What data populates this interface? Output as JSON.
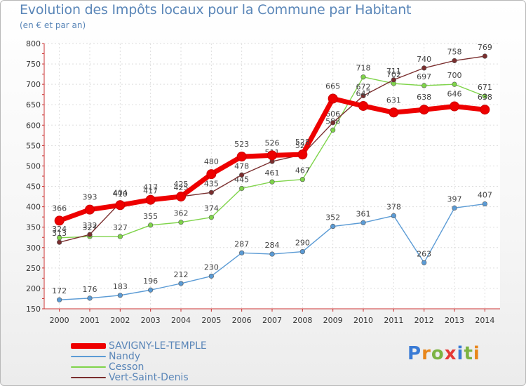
{
  "header": {
    "title": "Evolution des Impôts locaux pour la Commune par Habitant",
    "subtitle": "(en € et par an)"
  },
  "logo": {
    "text": "Proxiti",
    "letter_colors": [
      "#3a7bd5",
      "#e8861a",
      "#7cb342",
      "#e53935",
      "#3a7bd5",
      "#7cb342",
      "#e8861a"
    ]
  },
  "chart_data": {
    "type": "line",
    "x": [
      "2000",
      "2001",
      "2002",
      "2003",
      "2004",
      "2005",
      "2006",
      "2007",
      "2008",
      "2009",
      "2010",
      "2011",
      "2012",
      "2013",
      "2014"
    ],
    "ylim": [
      150,
      800
    ],
    "yticks": [
      150,
      200,
      250,
      300,
      350,
      400,
      450,
      500,
      550,
      600,
      650,
      700,
      750,
      800
    ],
    "grid": true,
    "legend_position": "bottom-left",
    "series": [
      {
        "name": "SAVIGNY-LE-TEMPLE",
        "color": "#ee0000",
        "style": "thick",
        "values": [
          366,
          393,
          404,
          417,
          425,
          480,
          523,
          526,
          528,
          665,
          647,
          631,
          638,
          646,
          638
        ]
      },
      {
        "name": "Nandy",
        "color": "#5b9bd5",
        "style": "thin",
        "values": [
          172,
          176,
          183,
          196,
          212,
          230,
          287,
          284,
          290,
          352,
          361,
          378,
          263,
          397,
          407
        ]
      },
      {
        "name": "Cesson",
        "color": "#7fd44a",
        "style": "thin",
        "values": [
          324,
          327,
          327,
          355,
          362,
          374,
          445,
          461,
          467,
          588,
          718,
          702,
          697,
          700,
          671
        ]
      },
      {
        "name": "Vert-Saint-Denis",
        "color": "#7a2e2e",
        "style": "thin",
        "values": [
          313,
          332,
          410,
          417,
          425,
          435,
          478,
          511,
          528,
          606,
          672,
          711,
          740,
          758,
          769
        ]
      }
    ]
  }
}
